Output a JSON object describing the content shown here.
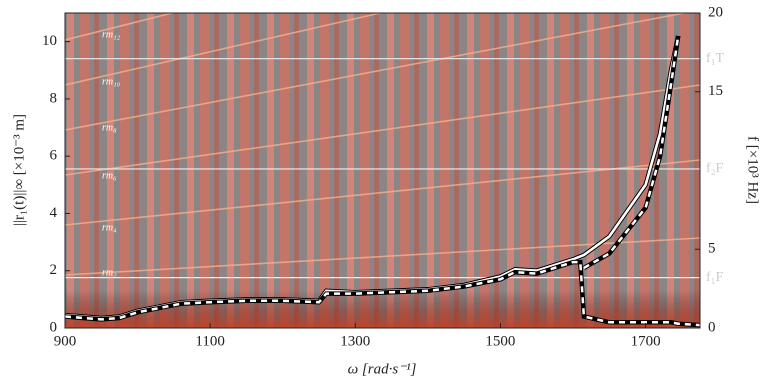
{
  "chart_data": {
    "type": "line",
    "x_label": "ω [rad·s⁻¹]",
    "y_label": "||r₁(t)||∞ [×10⁻³ m]",
    "y2_label": "f [×10³ Hz]",
    "x": [
      900,
      925,
      950,
      975,
      1000,
      1050,
      1060,
      1100,
      1150,
      1200,
      1250,
      1260,
      1300,
      1350,
      1400,
      1450,
      1500,
      1520,
      1550,
      1600,
      1610,
      1615,
      1650,
      1700,
      1720,
      1735,
      1745,
      1775
    ],
    "series": [
      {
        "color": "#ffffff",
        "style": "solid",
        "values": [
          0.45,
          0.4,
          0.35,
          0.4,
          0.6,
          0.85,
          0.9,
          0.95,
          1.0,
          1.0,
          0.95,
          1.3,
          1.25,
          1.3,
          1.35,
          1.5,
          1.8,
          2.05,
          2.0,
          2.4,
          2.5,
          2.55,
          3.2,
          5.0,
          6.8,
          9.0,
          10.2,
          null
        ]
      },
      {
        "color": "#ffffff",
        "style": "dashed",
        "values": [
          0.4,
          0.35,
          0.3,
          0.35,
          0.55,
          0.8,
          0.85,
          0.9,
          0.95,
          0.95,
          0.9,
          1.2,
          1.2,
          1.25,
          1.3,
          1.45,
          1.7,
          1.95,
          1.9,
          2.3,
          2.3,
          0.4,
          0.2,
          0.2,
          0.2,
          0.2,
          0.15,
          0.1
        ]
      },
      {
        "color": "#ffffff",
        "style": "dashed",
        "values": [
          null,
          null,
          null,
          null,
          null,
          null,
          null,
          null,
          null,
          null,
          null,
          null,
          null,
          null,
          null,
          null,
          null,
          null,
          null,
          null,
          null,
          2.1,
          2.6,
          4.2,
          6.0,
          8.5,
          10.2,
          null
        ]
      }
    ],
    "xlim": [
      900,
      1775
    ],
    "xticks": [
      900,
      1100,
      1300,
      1500,
      1700
    ],
    "ylim": [
      0,
      11
    ],
    "yticks": [
      0,
      2,
      4,
      6,
      8,
      10
    ],
    "y2lim": [
      0,
      20
    ],
    "y2ticks": [
      0,
      5,
      15,
      20
    ],
    "reference_lines": [
      {
        "label": "f₁T",
        "value": 17.1
      },
      {
        "label": "f₂F",
        "value": 10.1
      },
      {
        "label": "f₁F",
        "value": 3.2
      }
    ],
    "harmonic_labels": [
      "rm₁₂",
      "rm₁₀",
      "rm₈",
      "rm₆",
      "rm₄",
      "rm₂"
    ]
  }
}
